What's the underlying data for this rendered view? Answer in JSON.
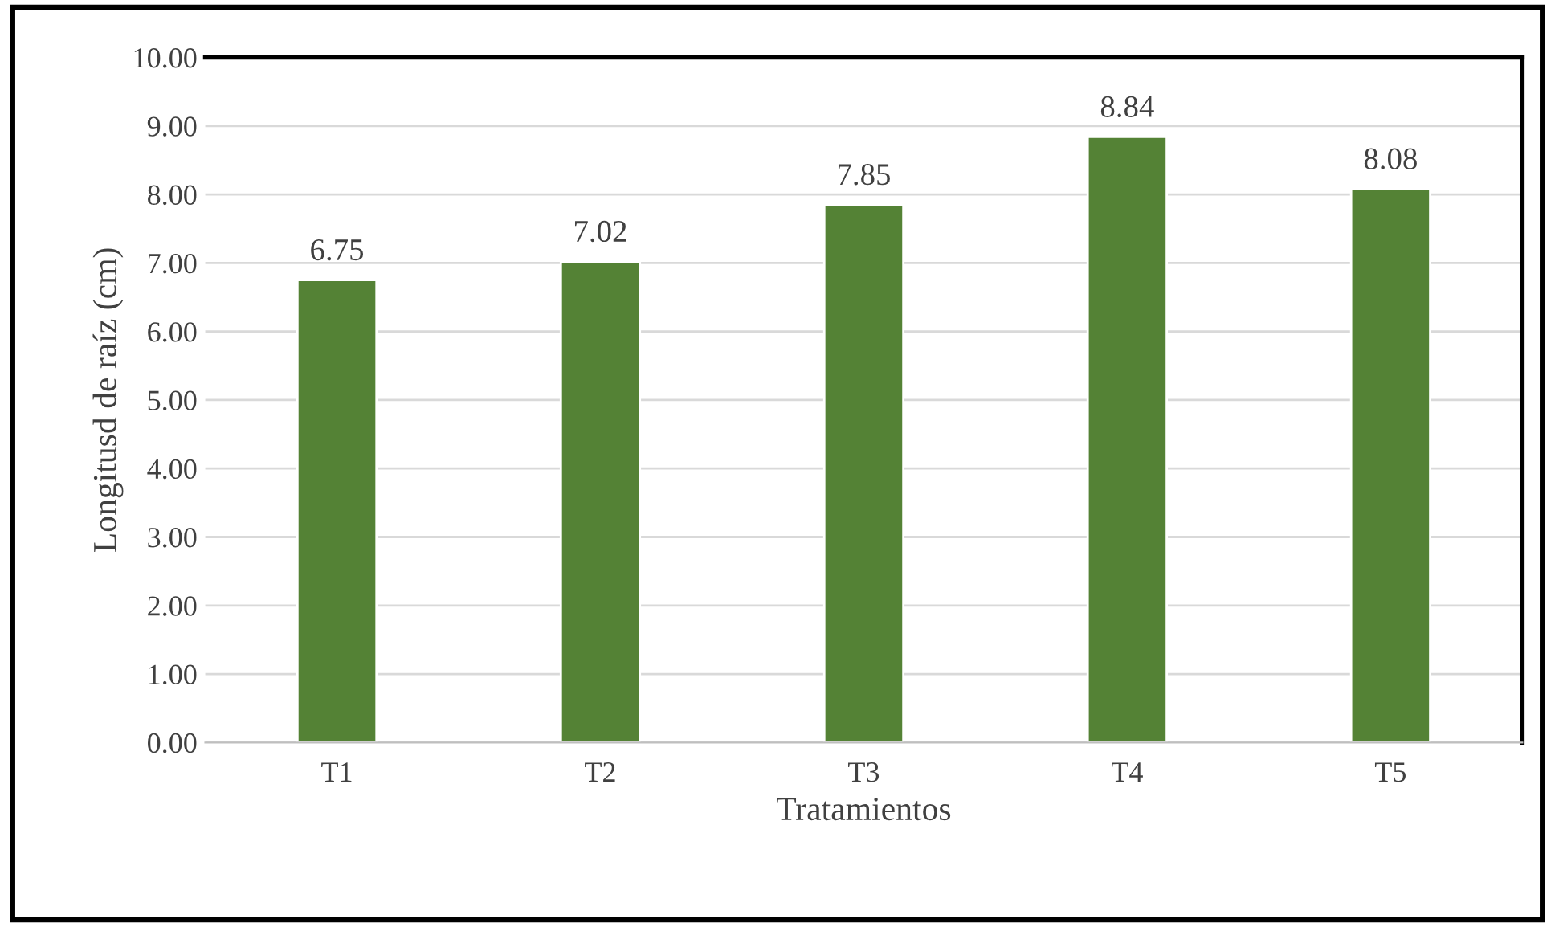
{
  "chart_data": {
    "type": "bar",
    "xlabel": "Tratamientos",
    "ylabel": "Longitusd de raíz (cm)",
    "categories": [
      "T1",
      "T2",
      "T3",
      "T4",
      "T5"
    ],
    "values": [
      6.75,
      7.02,
      7.85,
      8.84,
      8.08
    ],
    "value_labels": [
      "6.75",
      "7.02",
      "7.85",
      "8.84",
      "8.08"
    ],
    "color": "#548235",
    "ylim": [
      0,
      10
    ],
    "yticks": [
      {
        "value": 0,
        "label": "0.00"
      },
      {
        "value": 1,
        "label": "1.00"
      },
      {
        "value": 2,
        "label": "2.00"
      },
      {
        "value": 3,
        "label": "3.00"
      },
      {
        "value": 4,
        "label": "4.00"
      },
      {
        "value": 5,
        "label": "5.00"
      },
      {
        "value": 6,
        "label": "6.00"
      },
      {
        "value": 7,
        "label": "7.00"
      },
      {
        "value": 8,
        "label": "8.00"
      },
      {
        "value": 9,
        "label": "9.00"
      },
      {
        "value": 10,
        "label": "10.00"
      }
    ],
    "grid": "y",
    "legend": false
  }
}
